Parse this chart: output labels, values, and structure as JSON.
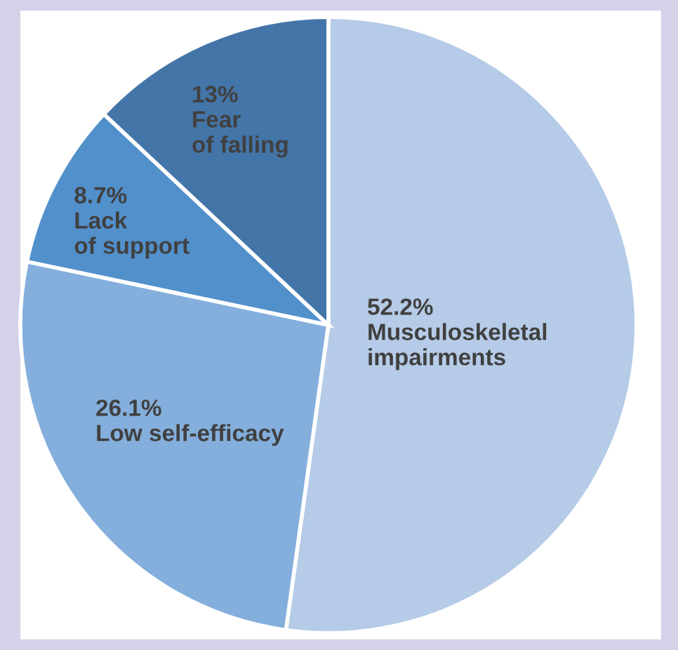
{
  "chart_data": {
    "type": "pie",
    "categories": [
      "Musculoskeletal impairments",
      "Low self-efficacy",
      "Lack of support",
      "Fear of falling"
    ],
    "values": [
      52.2,
      26.1,
      8.7,
      13
    ],
    "value_labels": [
      "52.2%",
      "26.1%",
      "8.7%",
      "13%"
    ],
    "colors": [
      "#b5cbe7",
      "#84afdc",
      "#5290cb",
      "#4475a8"
    ]
  }
}
